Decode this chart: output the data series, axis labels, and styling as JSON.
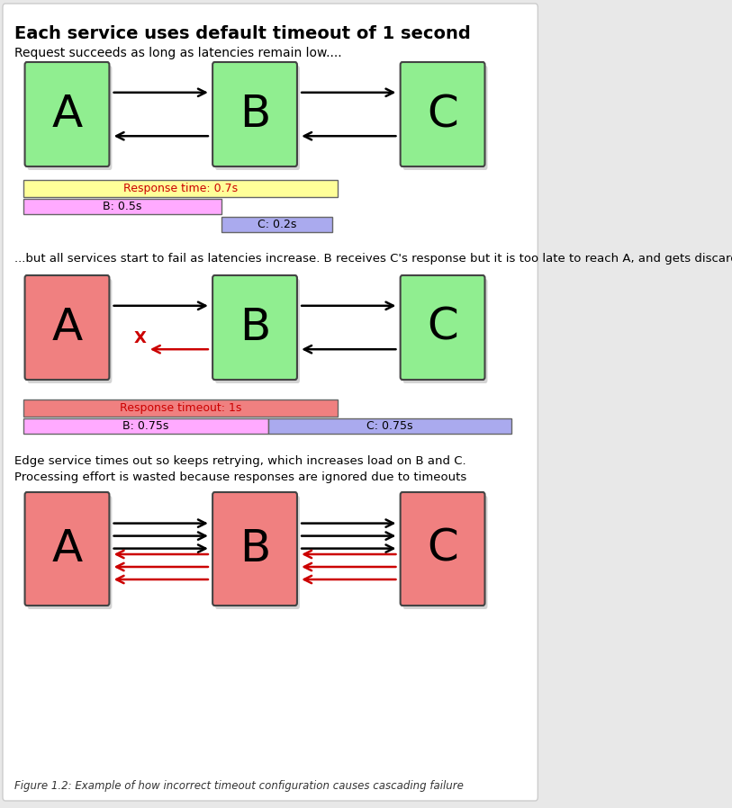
{
  "title": "Each service uses default timeout of 1 second",
  "subtitle1": "Request succeeds as long as latencies remain low....",
  "subtitle2": "...but all services start to fail as latencies increase. B receives C's response but it is too late to reach A, and gets discarded",
  "subtitle3_line1": "Edge service times out so keeps retrying, which increases load on B and C.",
  "subtitle3_line2": "Processing effort is wasted because responses are ignored due to timeouts",
  "caption": "Figure 1.2: Example of how incorrect timeout configuration causes cascading failure",
  "fig_bg": "#e8e8e8",
  "panel_bg": "#ffffff",
  "green_box": "#90ee90",
  "red_box": "#f08080",
  "bar_yellow": "#ffff99",
  "bar_pink": "#ffaaff",
  "bar_lavender": "#aaaaee",
  "bar_salmon": "#f08080",
  "text_red": "#cc0000",
  "arrow_black": "#000000",
  "arrow_red": "#cc0000",
  "shadow_color": "#aaaaaa"
}
